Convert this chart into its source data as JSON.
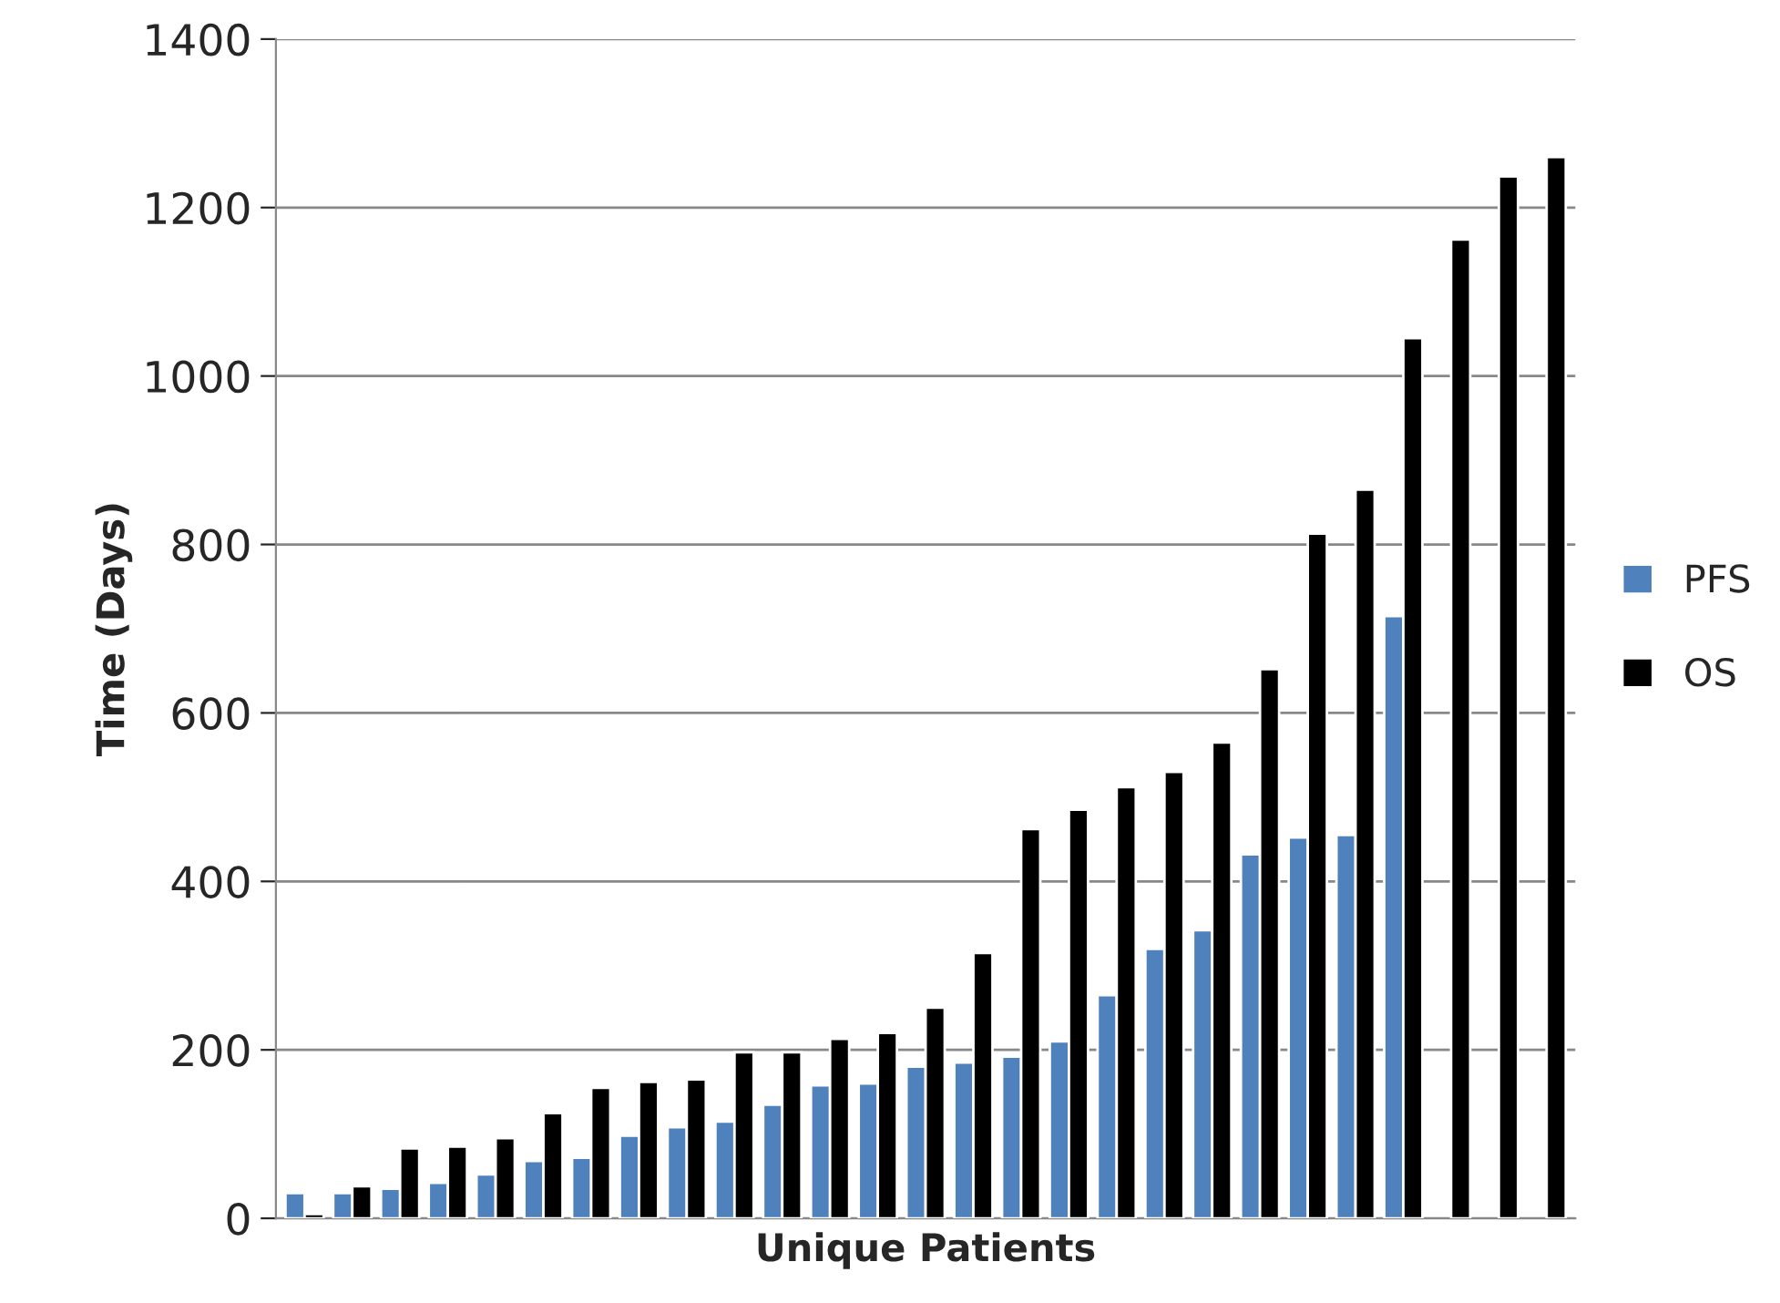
{
  "chart_data": {
    "type": "bar",
    "xlabel": "Unique Patients",
    "ylabel": "Time (Days)",
    "categories": [
      null,
      null,
      null,
      null,
      null,
      null,
      null,
      null,
      null,
      null,
      null,
      null,
      null,
      null,
      null,
      null,
      null,
      null,
      null,
      null,
      null,
      null,
      null,
      null,
      null,
      null,
      null
    ],
    "series": [
      {
        "name": "PFS",
        "color": "#4f81bd",
        "values": [
          30,
          30,
          35,
          42,
          52,
          68,
          72,
          98,
          108,
          115,
          135,
          158,
          160,
          180,
          185,
          192,
          210,
          265,
          320,
          342,
          432,
          452,
          455,
          715,
          null,
          null,
          null
        ]
      },
      {
        "name": "OS",
        "color": "#000000",
        "values": [
          5,
          38,
          83,
          85,
          95,
          125,
          155,
          162,
          165,
          197,
          197,
          213,
          220,
          250,
          315,
          462,
          485,
          512,
          530,
          565,
          652,
          813,
          865,
          1045,
          1162,
          1237,
          1260
        ]
      }
    ],
    "ylim": [
      0,
      1400
    ],
    "yticks": [
      0,
      200,
      400,
      600,
      800,
      1000,
      1200,
      1400
    ],
    "grid": "y",
    "legend": "right"
  }
}
